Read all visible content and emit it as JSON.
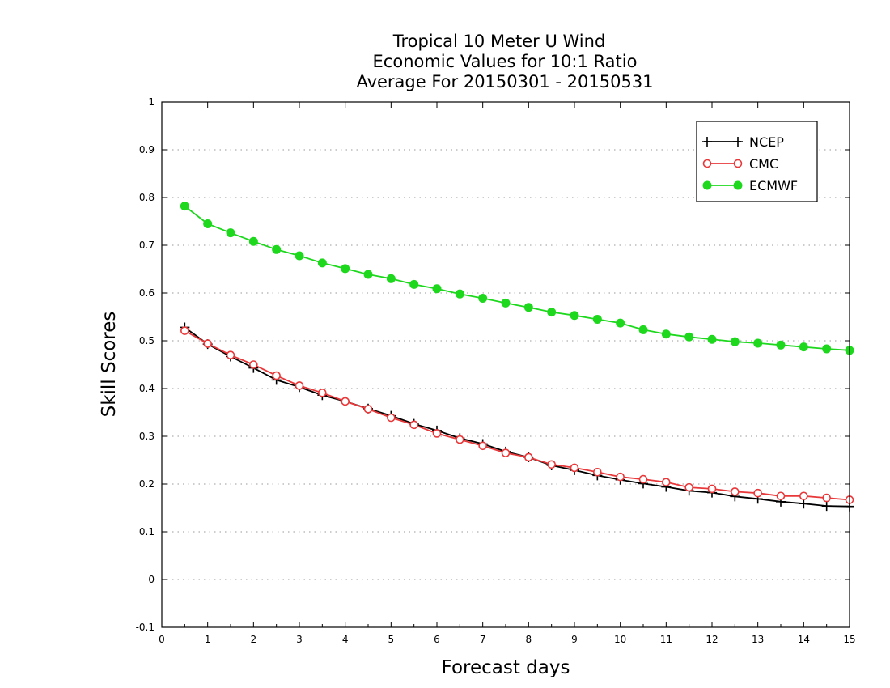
{
  "chart_data": {
    "type": "line",
    "title_lines": [
      "Tropical 10 Meter U Wind",
      "Economic Values for 10:1 Ratio",
      "Average For 20150301 - 20150531"
    ],
    "xlabel": "Forecast days",
    "ylabel": "Skill Scores",
    "xlim": [
      0,
      15
    ],
    "ylim": [
      -0.1,
      1
    ],
    "xticks": [
      0,
      1,
      2,
      3,
      4,
      5,
      6,
      7,
      8,
      9,
      10,
      11,
      12,
      13,
      14,
      15
    ],
    "yticks": [
      -0.1,
      0,
      0.1,
      0.2,
      0.3,
      0.4,
      0.5,
      0.6,
      0.7,
      0.8,
      0.9,
      1
    ],
    "ytick_labels": [
      "-0.1",
      "0",
      "0.1",
      "0.2",
      "0.3",
      "0.4",
      "0.5",
      "0.6",
      "0.7",
      "0.8",
      "0.9",
      "1"
    ],
    "grid": "horizontal dotted",
    "legend_position": "top-right",
    "x": [
      0.5,
      1,
      1.5,
      2,
      2.5,
      3,
      3.5,
      4,
      4.5,
      5,
      5.5,
      6,
      6.5,
      7,
      7.5,
      8,
      8.5,
      9,
      9.5,
      10,
      10.5,
      11,
      11.5,
      12,
      12.5,
      13,
      13.5,
      14,
      14.5,
      15
    ],
    "series": [
      {
        "name": "NCEP",
        "color": "#000000",
        "marker": "plus",
        "values": [
          0.528,
          0.493,
          0.467,
          0.443,
          0.418,
          0.403,
          0.386,
          0.373,
          0.358,
          0.343,
          0.326,
          0.312,
          0.296,
          0.284,
          0.268,
          0.256,
          0.239,
          0.229,
          0.218,
          0.209,
          0.201,
          0.194,
          0.186,
          0.182,
          0.174,
          0.169,
          0.163,
          0.159,
          0.154,
          0.153
        ]
      },
      {
        "name": "CMC",
        "color": "#e8383a",
        "marker": "open-circle",
        "values": [
          0.521,
          0.494,
          0.47,
          0.45,
          0.427,
          0.406,
          0.391,
          0.373,
          0.357,
          0.339,
          0.324,
          0.306,
          0.293,
          0.28,
          0.265,
          0.256,
          0.241,
          0.234,
          0.225,
          0.215,
          0.21,
          0.204,
          0.193,
          0.19,
          0.184,
          0.181,
          0.175,
          0.175,
          0.171,
          0.167
        ]
      },
      {
        "name": "ECMWF",
        "color": "#1ed81e",
        "marker": "filled-circle",
        "values": [
          0.782,
          0.745,
          0.726,
          0.708,
          0.691,
          0.678,
          0.663,
          0.651,
          0.639,
          0.63,
          0.618,
          0.609,
          0.598,
          0.589,
          0.579,
          0.57,
          0.56,
          0.553,
          0.545,
          0.537,
          0.523,
          0.514,
          0.508,
          0.503,
          0.498,
          0.495,
          0.491,
          0.487,
          0.483,
          0.48
        ]
      }
    ]
  }
}
